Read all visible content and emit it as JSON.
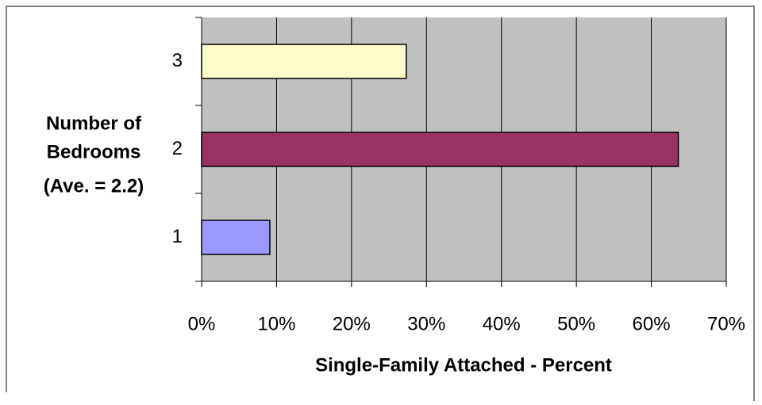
{
  "chart_data": {
    "type": "hbar",
    "xlabel": "Single-Family Attached - Percent",
    "ylabel_lines": [
      "Number of",
      "Bedrooms",
      "(Ave. = 2.2)"
    ],
    "categories": [
      "1",
      "2",
      "3"
    ],
    "values": [
      9.1,
      63.6,
      27.3
    ],
    "colors": [
      "#9999ff",
      "#993366",
      "#ffffcc"
    ],
    "xlim": [
      0,
      70
    ],
    "xticks": [
      {
        "value": 0,
        "label": "0%"
      },
      {
        "value": 10,
        "label": "10%"
      },
      {
        "value": 20,
        "label": "20%"
      },
      {
        "value": 30,
        "label": "30%"
      },
      {
        "value": 40,
        "label": "40%"
      },
      {
        "value": 50,
        "label": "50%"
      },
      {
        "value": 60,
        "label": "60%"
      },
      {
        "value": 70,
        "label": "70%"
      }
    ],
    "grid": true,
    "plot_background": "#c0c0c0"
  }
}
